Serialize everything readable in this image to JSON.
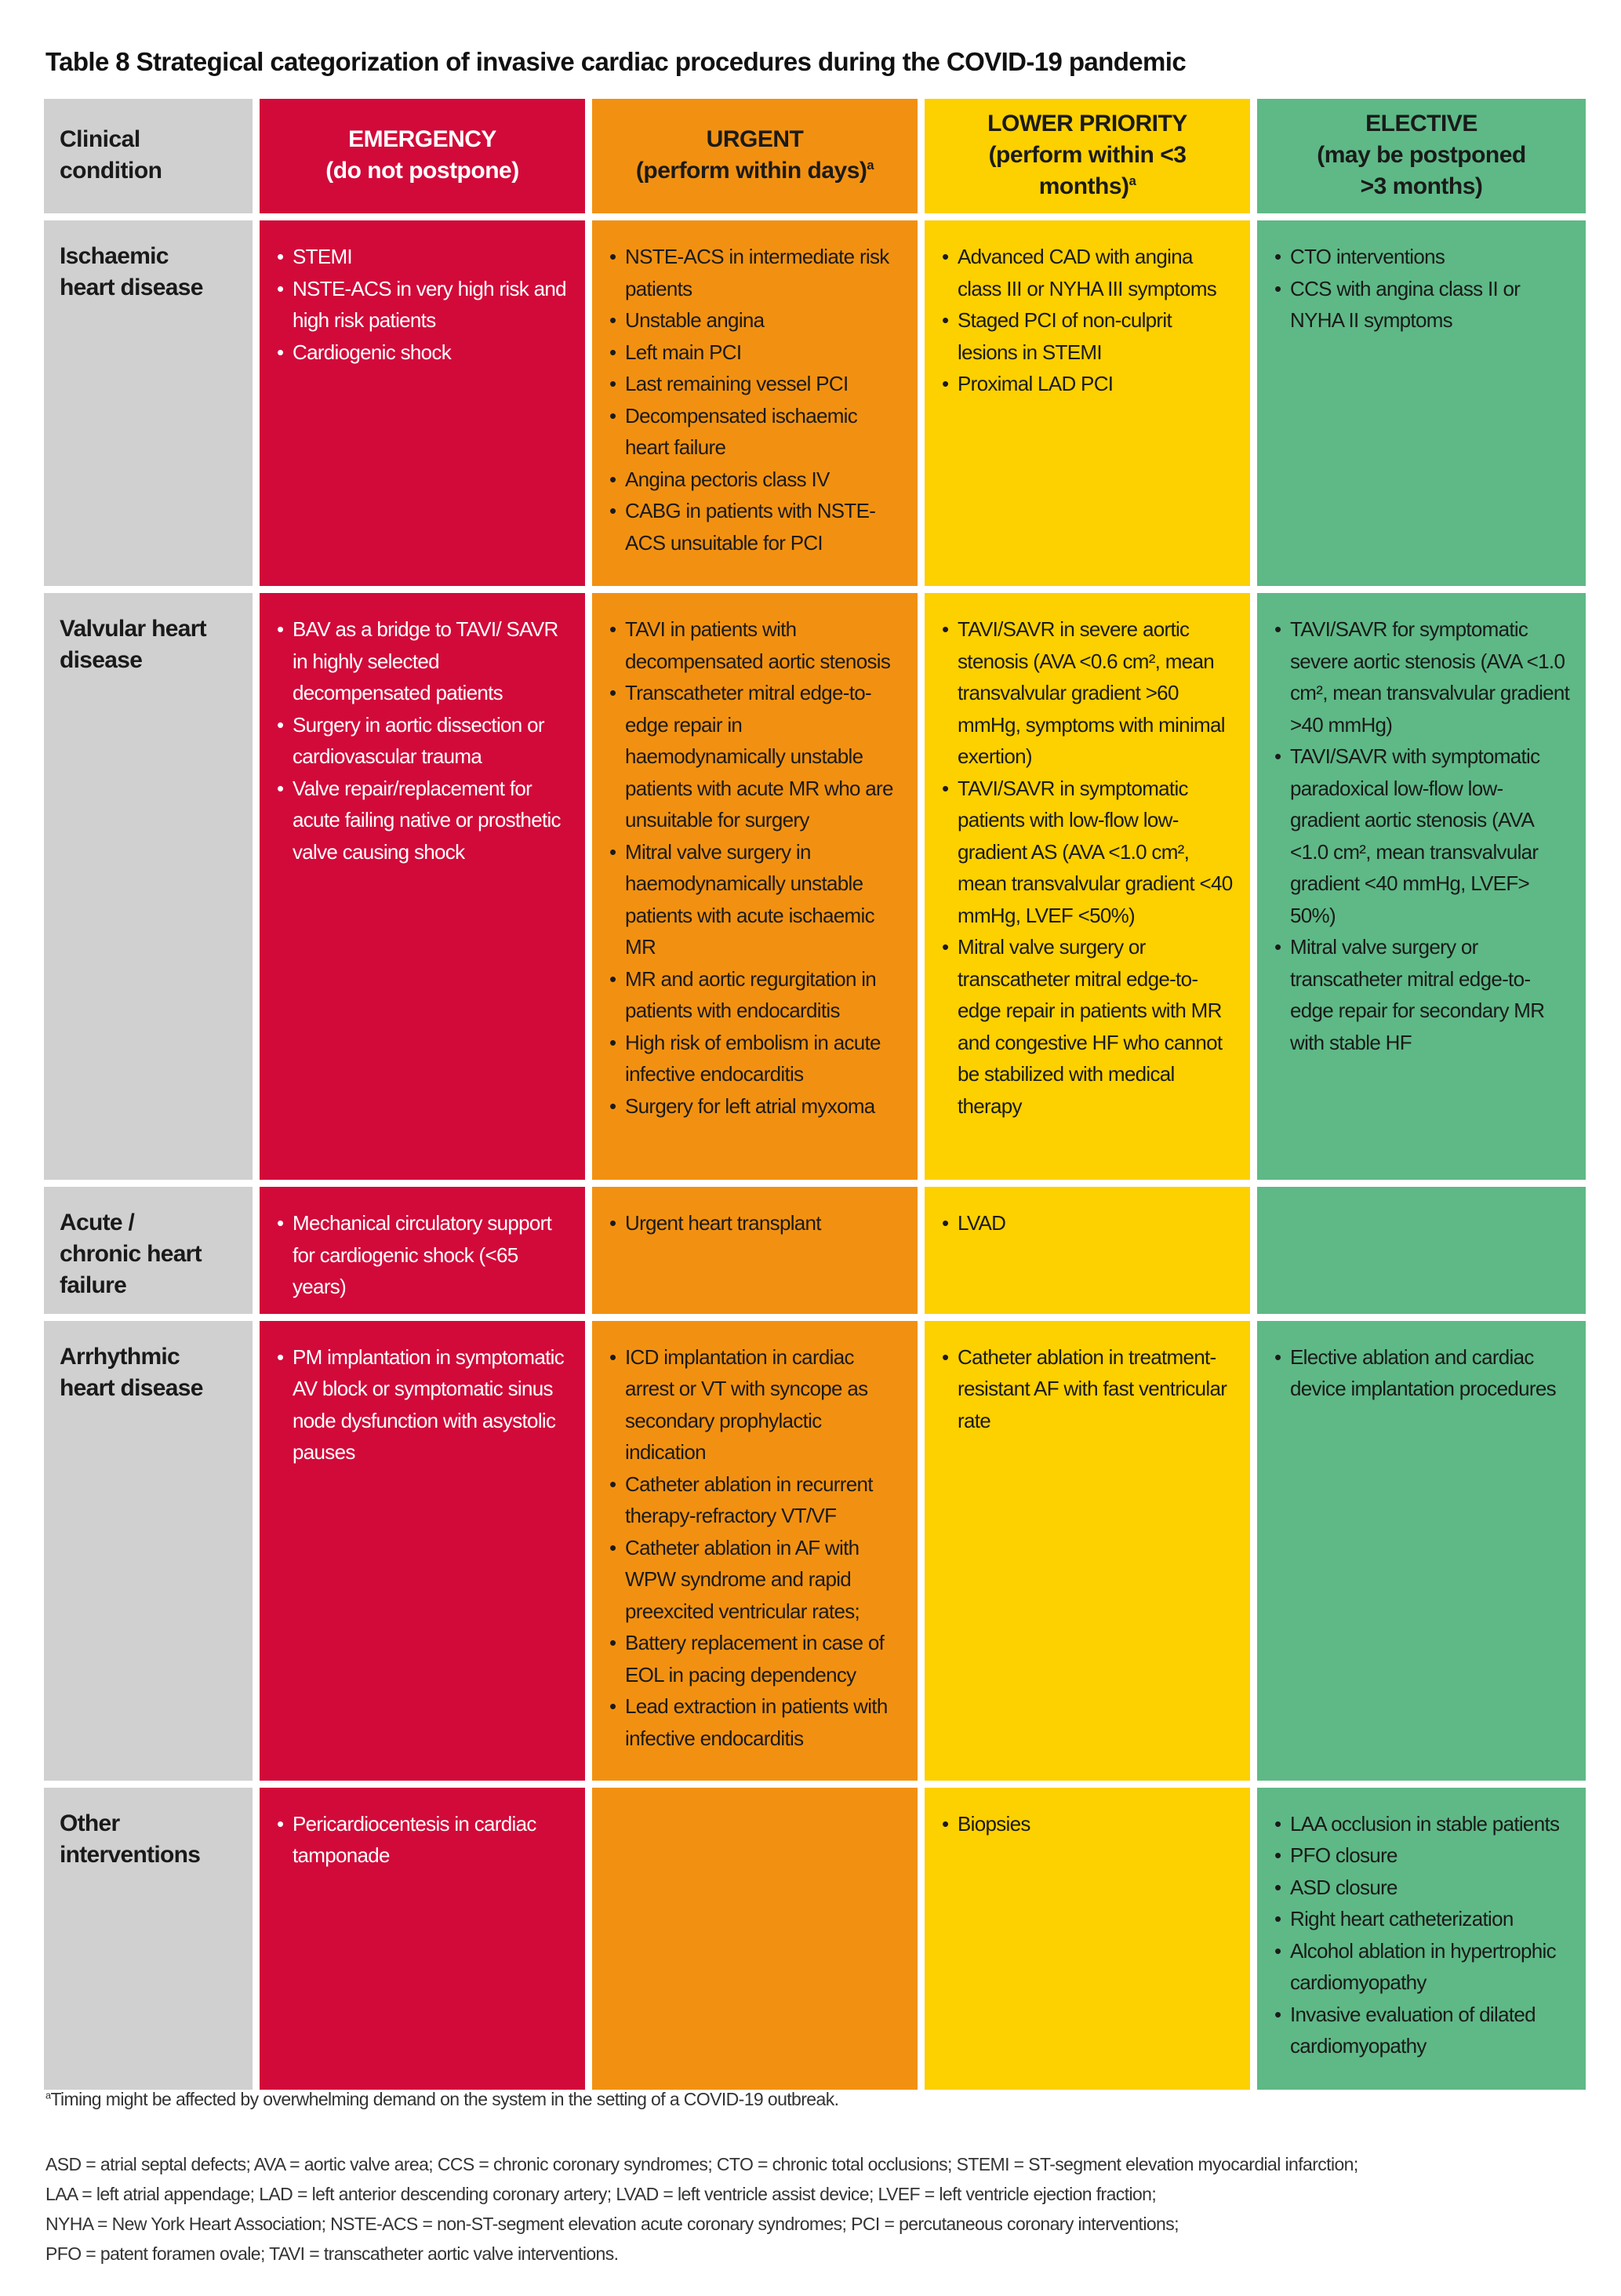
{
  "title": "Table 8 Strategical categorization of invasive cardiac procedures during the COVID-19 pandemic",
  "colors": {
    "condition": "#d0d0d0",
    "emergency": "#d20a3a",
    "urgent": "#f29111",
    "lower_priority": "#fdd000",
    "elective": "#5eb986"
  },
  "headers": {
    "condition": {
      "line1": "Clinical",
      "line2": "condition"
    },
    "emergency": {
      "line1": "EMERGENCY",
      "line2": "(do not postpone)",
      "sup": ""
    },
    "urgent": {
      "line1": "URGENT",
      "line2": "(perform within days)",
      "sup": "a"
    },
    "lower_priority": {
      "line1": "LOWER PRIORITY",
      "line2": "(perform within <3 months)",
      "sup": "a"
    },
    "elective": {
      "line1": "ELECTIVE",
      "line2": "(may be postponed >3 months)",
      "sup": ""
    }
  },
  "rows": [
    {
      "condition": "Ischaemic heart disease",
      "emergency": [
        "STEMI",
        "NSTE-ACS in very high risk and high risk patients",
        "Cardiogenic shock"
      ],
      "urgent": [
        "NSTE-ACS in intermediate risk patients",
        "Unstable angina",
        "Left main PCI",
        "Last remaining vessel PCI",
        "Decompensated ischaemic heart failure",
        "Angina pectoris class IV",
        "CABG in patients with NSTE-ACS unsuitable for PCI"
      ],
      "lower_priority": [
        "Advanced CAD with angina class III or NYHA III symptoms",
        "Staged PCI of non-culprit lesions in STEMI",
        "Proximal LAD PCI"
      ],
      "elective": [
        "CTO interventions",
        "CCS with angina class II or NYHA II symptoms"
      ]
    },
    {
      "condition": "Valvular heart disease",
      "emergency": [
        "BAV as a bridge to TAVI/ SAVR in highly selected decompensated patients",
        "Surgery in aortic dissection or cardiovascular trauma",
        "Valve repair/replacement for acute failing native or prosthetic valve causing shock"
      ],
      "urgent": [
        "TAVI in patients with decompensated aortic stenosis",
        "Transcatheter mitral edge-to-edge repair in haemodynamically unstable patients with acute MR who are unsuitable for surgery",
        "Mitral valve surgery in haemodynamically unstable patients with acute ischaemic MR",
        "MR and aortic regurgitation in patients with endocarditis",
        "High risk of embolism in acute infective endocarditis",
        "Surgery for left atrial myxoma"
      ],
      "lower_priority": [
        "TAVI/SAVR in severe aortic stenosis (AVA <0.6 cm², mean transvalvular gradient >60 mmHg, symptoms with minimal exertion)",
        "TAVI/SAVR in symptomatic patients with low-flow low-gradient AS (AVA <1.0 cm², mean transvalvular gradient <40 mmHg, LVEF <50%)",
        "Mitral valve surgery or transcatheter mitral edge-to-edge repair in patients with MR and congestive HF who cannot be stabilized with medical therapy"
      ],
      "elective": [
        "TAVI/SAVR for symptomatic severe aortic stenosis (AVA <1.0 cm², mean transvalvular gradient >40 mmHg)",
        "TAVI/SAVR with symptomatic paradoxical low-flow low-gradient aortic stenosis (AVA <1.0 cm², mean transvalvular gradient <40 mmHg, LVEF> 50%)",
        "Mitral valve surgery or transcatheter mitral edge-to-edge repair for secondary MR with stable HF"
      ]
    },
    {
      "condition": "Acute / chronic heart failure",
      "emergency": [
        "Mechanical circulatory support for cardiogenic shock (<65 years)"
      ],
      "urgent": [
        "Urgent heart transplant"
      ],
      "lower_priority": [
        "LVAD"
      ],
      "elective": []
    },
    {
      "condition": "Arrhythmic heart disease",
      "emergency": [
        "PM implantation in symptomatic AV block or symptomatic sinus node dysfunction with asystolic pauses"
      ],
      "urgent": [
        "ICD implantation in cardiac arrest or VT with syncope as secondary prophylactic indication",
        "Catheter ablation in recurrent therapy-refractory VT/VF",
        "Catheter ablation in AF with WPW syndrome and rapid preexcited ventricular rates;",
        "Battery replacement in case of EOL in pacing dependency",
        "Lead extraction in patients with infective endocarditis"
      ],
      "lower_priority": [
        "Catheter ablation in treatment-resistant AF with fast ventricular rate"
      ],
      "elective": [
        "Elective ablation and cardiac device implantation procedures"
      ]
    },
    {
      "condition": "Other interventions",
      "emergency": [
        "Pericardiocentesis in cardiac tamponade"
      ],
      "urgent": [],
      "lower_priority": [
        "Biopsies"
      ],
      "elective": [
        "LAA occlusion in stable patients",
        "PFO closure",
        "ASD closure",
        "Right heart catheterization",
        "Alcohol ablation in hypertrophic cardiomyopathy",
        "Invasive evaluation of dilated cardiomyopathy"
      ]
    }
  ],
  "footnote": {
    "sup": "a",
    "text": "Timing might be affected by overwhelming demand on the system in the setting of a COVID-19 outbreak."
  },
  "abbreviations": [
    "ASD = atrial septal defects; AVA = aortic valve area; CCS = chronic coronary syndromes; CTO = chronic total occlusions; STEMI = ST-segment elevation myocardial infarction;",
    "LAA = left atrial appendage; LAD = left anterior descending coronary artery; LVAD = left ventricle assist device; LVEF = left ventricle ejection fraction;",
    "NYHA = New York Heart Association; NSTE-ACS = non-ST-segment elevation acute coronary syndromes; PCI = percutaneous coronary interventions;",
    "PFO = patent foramen ovale; TAVI = transcatheter aortic valve interventions."
  ]
}
